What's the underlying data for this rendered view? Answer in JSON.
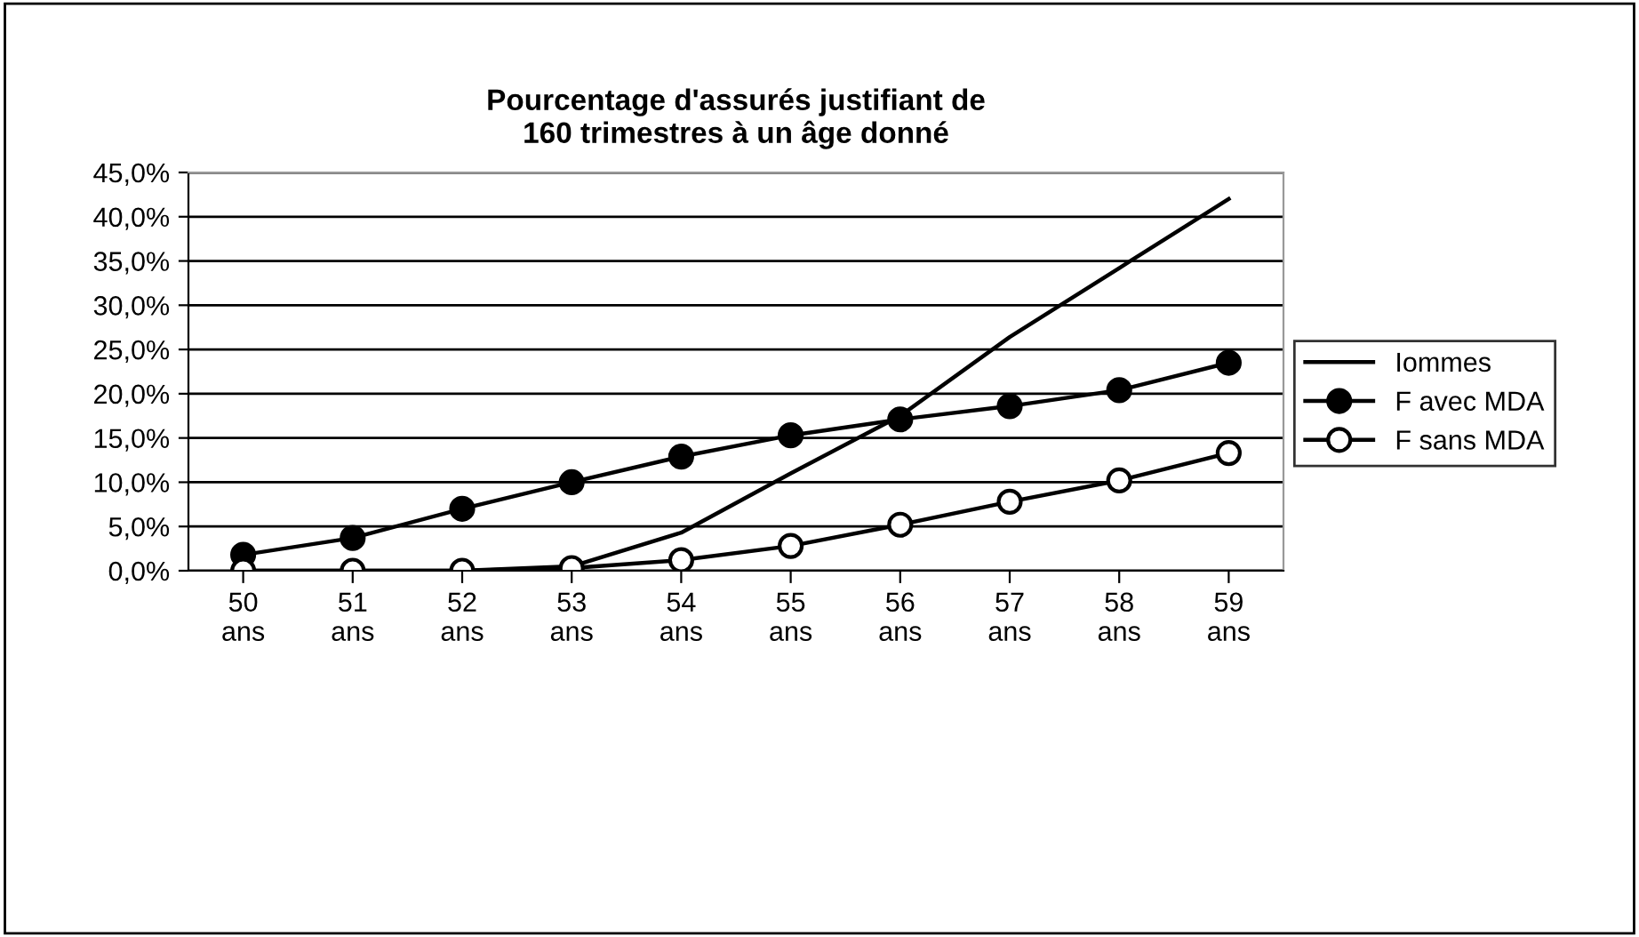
{
  "chart_data": {
    "type": "line",
    "title": "Pourcentage d'assurés justifiant de\n160 trimestres à un âge donné",
    "categories": [
      "50\nans",
      "51\nans",
      "52\nans",
      "53\nans",
      "54\nans",
      "55\nans",
      "56\nans",
      "57\nans",
      "58\nans",
      "59\nans"
    ],
    "series": [
      {
        "name": "Iommes",
        "color": "#000000",
        "marker": "none",
        "values": [
          0,
          0,
          0,
          0.5,
          4.3,
          11.0,
          17.5,
          26.4,
          34.2,
          42.0
        ]
      },
      {
        "name": "F avec MDA",
        "color": "#000000",
        "marker": "circle",
        "values": [
          1.8,
          3.7,
          7.0,
          10.0,
          12.9,
          15.3,
          17.1,
          18.6,
          20.4,
          23.5
        ]
      },
      {
        "name": "F sans MDA",
        "color": "#000000",
        "marker": "circle",
        "values": [
          0,
          0,
          0,
          0.3,
          1.2,
          2.8,
          5.2,
          7.8,
          10.2,
          13.3
        ]
      }
    ],
    "ylim": [
      0,
      45
    ],
    "yticks": [
      {
        "value": 0,
        "label": "0,0%"
      },
      {
        "value": 5,
        "label": "5,0%"
      },
      {
        "value": 10,
        "label": "10,0%"
      },
      {
        "value": 15,
        "label": "15,0%"
      },
      {
        "value": 20,
        "label": "20,0%"
      },
      {
        "value": 25,
        "label": "25,0%"
      },
      {
        "value": 30,
        "label": "30,0%"
      },
      {
        "value": 35,
        "label": "35,0%"
      },
      {
        "value": 40,
        "label": "40,0%"
      },
      {
        "value": 45,
        "label": "45,0%"
      }
    ],
    "grid": "y",
    "legend": "right",
    "line_style": "solid"
  }
}
